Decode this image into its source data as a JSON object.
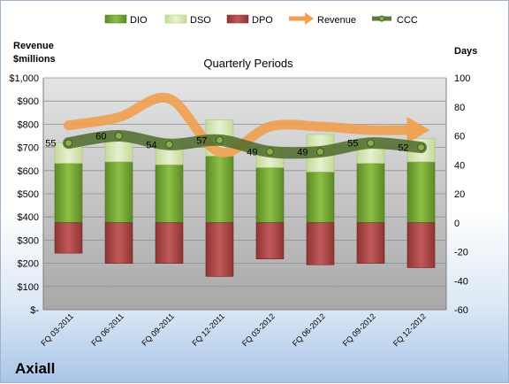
{
  "chart_data": {
    "type": "bar",
    "title": "Quarterly Periods",
    "left_axis_label": [
      "Revenue",
      "$millions"
    ],
    "right_axis_label": "Days",
    "company": "Axiall",
    "categories": [
      "FQ 03-2011",
      "FQ 06-2011",
      "FQ 09-2011",
      "FQ 12-2011",
      "FQ 03-2012",
      "FQ 06-2012",
      "FQ 09-2012",
      "FQ 12-2012"
    ],
    "left_ticks": [
      "$-",
      "$100",
      "$200",
      "$300",
      "$400",
      "$500",
      "$600",
      "$700",
      "$800",
      "$900",
      "$1,000"
    ],
    "left_ylim": [
      0,
      1000
    ],
    "right_ticks": [
      "-60",
      "-40",
      "-20",
      "0",
      "20",
      "40",
      "60",
      "80",
      "100"
    ],
    "right_ylim": [
      -60,
      100
    ],
    "legend_placement": "top",
    "series": [
      {
        "name": "DIO",
        "color": "#7aa53a",
        "axis": "days",
        "values": [
          41,
          42,
          40,
          46,
          38,
          35,
          41,
          42
        ]
      },
      {
        "name": "DSO",
        "color": "#d7e8b5",
        "axis": "days",
        "values": [
          14,
          19,
          18,
          25,
          14,
          26,
          17,
          16
        ]
      },
      {
        "name": "DPO",
        "color": "#b04848",
        "axis": "days",
        "values": [
          -21,
          -28,
          -28,
          -37,
          -25,
          -29,
          -28,
          -31
        ]
      },
      {
        "name": "Revenue",
        "color": "#f0a050",
        "axis": "revenue",
        "values": [
          795,
          830,
          910,
          680,
          790,
          790,
          775,
          775
        ]
      },
      {
        "name": "CCC",
        "color": "#5a7a32",
        "axis": "days",
        "values": [
          55,
          60,
          54,
          57,
          49,
          49,
          55,
          52
        ]
      }
    ],
    "ccc_labels": [
      "55",
      "60",
      "54",
      "57",
      "49",
      "49",
      "55",
      "52"
    ]
  }
}
